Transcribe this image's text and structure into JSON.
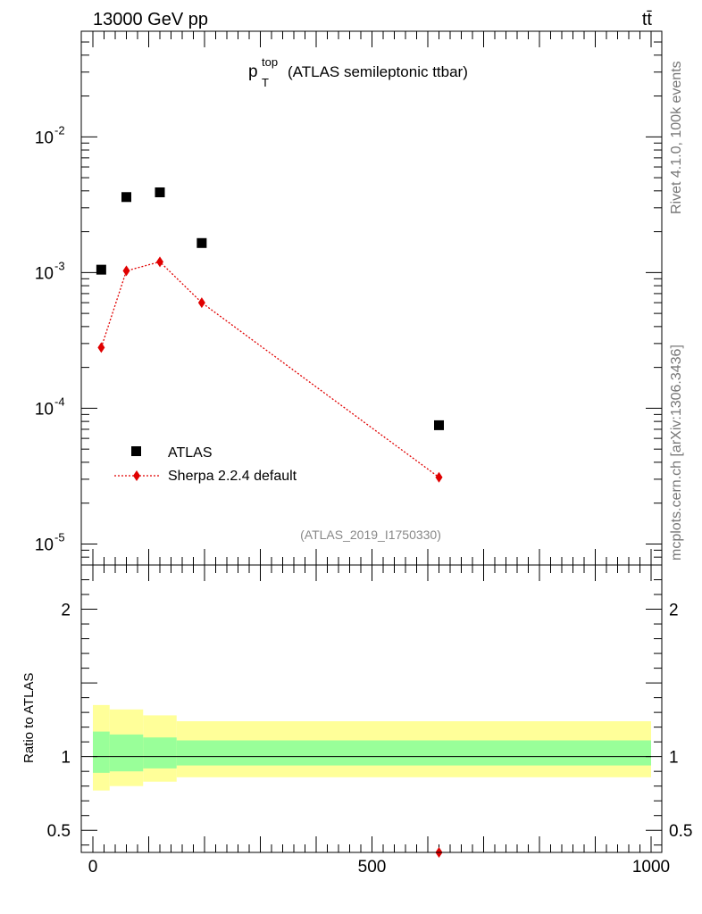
{
  "header": {
    "energy_label": "13000 GeV pp",
    "process_label": "tt̄"
  },
  "side_labels": {
    "rivet": "Rivet 4.1.0,  100k events",
    "source": "mcplots.cern.ch [arXiv:1306.3436]"
  },
  "chart_data": [
    {
      "type": "scatter",
      "panel": "main",
      "title_main": "p",
      "title_sup": "top",
      "title_sub": "T",
      "title_rest": "(ATLAS semileptonic ttbar)",
      "analysis_label": "(ATLAS_2019_I1750330)",
      "yscale": "log",
      "ylim": [
        7e-06,
        0.06
      ],
      "xlim": [
        -20,
        1000
      ],
      "y_tick_labels": [
        "10",
        "10",
        "10",
        "10"
      ],
      "y_tick_exponents": [
        "-2",
        "-3",
        "-4",
        "-5"
      ],
      "y_tick_values": [
        0.01,
        0.001,
        0.0001,
        1e-05
      ],
      "legend_position": "lower-left",
      "series": [
        {
          "name": "ATLAS",
          "marker": "square",
          "color": "#000000",
          "x": [
            15,
            60,
            120,
            195,
            620
          ],
          "y": [
            0.00105,
            0.0036,
            0.0039,
            0.00165,
            7.5e-05
          ]
        },
        {
          "name": "Sherpa 2.2.4 default",
          "marker": "diamond",
          "line": "dotted",
          "color": "#e00000",
          "x": [
            15,
            60,
            120,
            195,
            620
          ],
          "y": [
            0.00028,
            0.00103,
            0.0012,
            0.0006,
            3.1e-05
          ]
        }
      ]
    },
    {
      "type": "ratio",
      "panel": "ratio",
      "ylabel": "Ratio to ATLAS",
      "ylim": [
        0.35,
        2.3
      ],
      "xlim": [
        -20,
        1000
      ],
      "y_tick_labels": [
        "2",
        "1",
        "0.5"
      ],
      "y_tick_values": [
        2,
        1,
        0.5
      ],
      "x_tick_labels": [
        "0",
        "500",
        "1000"
      ],
      "x_tick_values": [
        0,
        500,
        1000
      ],
      "bands": {
        "bins": [
          [
            0,
            30
          ],
          [
            30,
            90
          ],
          [
            90,
            150
          ],
          [
            150,
            1000
          ]
        ],
        "stat_lo": [
          0.89,
          0.9,
          0.92,
          0.94
        ],
        "stat_hi": [
          1.17,
          1.15,
          1.13,
          1.11
        ],
        "total_lo": [
          0.77,
          0.8,
          0.83,
          0.86
        ],
        "total_hi": [
          1.35,
          1.32,
          1.28,
          1.24
        ],
        "stat_color": "#99ff99",
        "total_color": "#ffff99"
      },
      "series": [
        {
          "name": "Sherpa 2.2.4 default",
          "marker": "diamond",
          "color": "#e00000",
          "x": [
            620
          ],
          "y": [
            0.35
          ]
        }
      ]
    }
  ]
}
